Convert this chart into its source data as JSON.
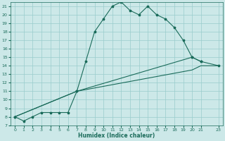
{
  "xlabel": "Humidex (Indice chaleur)",
  "xlim": [
    -0.5,
    23.5
  ],
  "ylim": [
    7,
    21.5
  ],
  "yticks": [
    7,
    8,
    9,
    10,
    11,
    12,
    13,
    14,
    15,
    16,
    17,
    18,
    19,
    20,
    21
  ],
  "xticks": [
    0,
    1,
    2,
    3,
    4,
    5,
    6,
    7,
    8,
    9,
    10,
    11,
    12,
    13,
    14,
    15,
    16,
    17,
    18,
    19,
    20,
    21,
    23
  ],
  "bg_color": "#cce8e8",
  "grid_color": "#99cccc",
  "line_color": "#1a6b5a",
  "line1_x": [
    0,
    1,
    2,
    3,
    4,
    5,
    6,
    7,
    8,
    9,
    10,
    11,
    12,
    13,
    14,
    15,
    16,
    17,
    18,
    19,
    20,
    21
  ],
  "line1_y": [
    8.0,
    7.5,
    8.0,
    8.5,
    8.5,
    8.5,
    8.5,
    11.0,
    14.5,
    18.0,
    19.5,
    21.0,
    21.5,
    20.5,
    20.0,
    21.0,
    20.0,
    19.5,
    18.5,
    17.0,
    15.0,
    14.5
  ],
  "line2_x": [
    0,
    7,
    20,
    21,
    23
  ],
  "line2_y": [
    8.0,
    11.0,
    15.0,
    14.5,
    14.0
  ],
  "line3_x": [
    0,
    7,
    20,
    21,
    23
  ],
  "line3_y": [
    8.0,
    11.0,
    13.5,
    14.0,
    14.0
  ]
}
